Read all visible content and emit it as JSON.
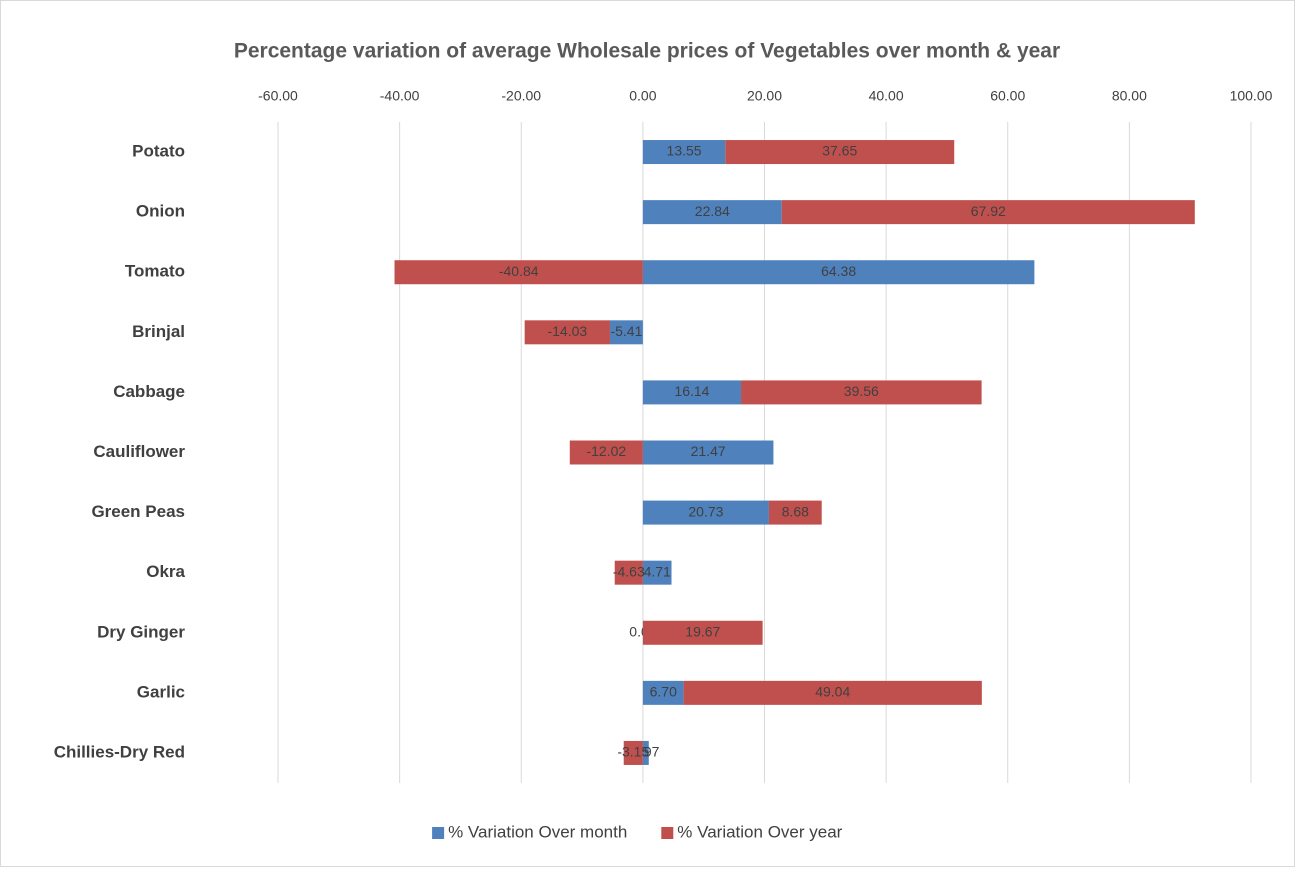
{
  "chart_data": {
    "type": "stacked_bar_horizontal",
    "title": "Percentage variation of average Wholesale prices of Vegetables over month & year",
    "categories": [
      "Potato",
      "Onion",
      "Tomato",
      "Brinjal",
      "Cabbage",
      "Cauliflower",
      "Green Peas",
      "Okra",
      "Dry Ginger",
      "Garlic",
      "Chillies-Dry Red"
    ],
    "series": [
      {
        "name": "% Variation Over month",
        "color": "#4f81bd",
        "values": [
          13.55,
          22.84,
          64.38,
          -5.41,
          16.14,
          21.47,
          20.73,
          4.71,
          0.02,
          6.7,
          0.97
        ],
        "value_labels": [
          "13.55",
          "22.84",
          "64.38",
          "-5.41",
          "16.14",
          "21.47",
          "20.73",
          "4.71",
          "0.02",
          "6.70",
          "0.97"
        ]
      },
      {
        "name": "% Variation Over year",
        "color": "#c0504d",
        "values": [
          37.65,
          67.92,
          -40.84,
          -14.03,
          39.56,
          -12.02,
          8.68,
          -4.63,
          19.67,
          49.04,
          -3.15
        ],
        "value_labels": [
          "37.65",
          "67.92",
          "-40.84",
          "-14.03",
          "39.56",
          "-12.02",
          "8.68",
          "-4.63",
          "19.67",
          "49.04",
          "-3.15"
        ]
      }
    ],
    "xlim": [
      -60,
      100
    ],
    "xticks": [
      {
        "value": -60,
        "label": "-60.00"
      },
      {
        "value": -40,
        "label": "-40.00"
      },
      {
        "value": -20,
        "label": "-20.00"
      },
      {
        "value": 0,
        "label": "0.00"
      },
      {
        "value": 20,
        "label": "20.00"
      },
      {
        "value": 40,
        "label": "40.00"
      },
      {
        "value": 60,
        "label": "60.00"
      },
      {
        "value": 80,
        "label": "80.00"
      },
      {
        "value": 100,
        "label": "100.00"
      }
    ],
    "grid": true,
    "legend": "bottom"
  }
}
